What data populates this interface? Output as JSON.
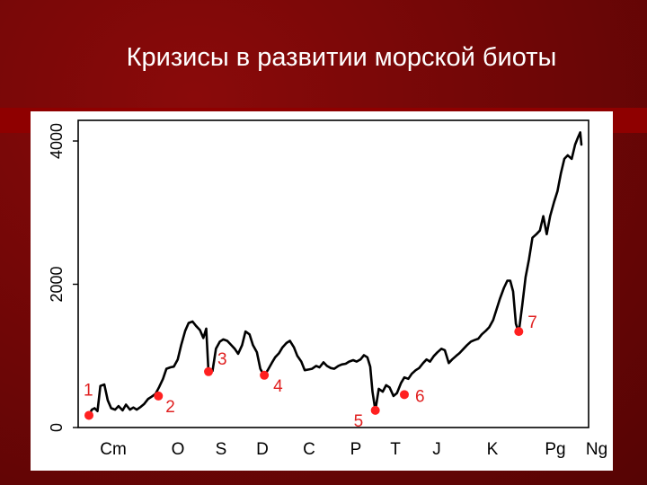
{
  "slide": {
    "title": "Кризисы в развитии морской биоты"
  },
  "chart_data": {
    "type": "line",
    "title": "Кризисы в развитии морской биоты",
    "xlabel": "",
    "ylabel": "",
    "ylim": [
      0,
      4000
    ],
    "y_ticks": [
      "0",
      "2000",
      "4000"
    ],
    "periods": [
      "Cm",
      "O",
      "S",
      "D",
      "C",
      "P",
      "T",
      "J",
      "K",
      "Pg",
      "Ng"
    ],
    "line_color": "#000000",
    "marker_color": "#ff2020",
    "label_color": "#e02020",
    "series": [
      {
        "values": [
          [
            0.0,
            170
          ],
          [
            0.5,
            250
          ],
          [
            1.0,
            270
          ],
          [
            1.5,
            230
          ],
          [
            2.0,
            580
          ],
          [
            2.7,
            600
          ],
          [
            3.3,
            380
          ],
          [
            3.9,
            270
          ],
          [
            4.6,
            250
          ],
          [
            5.2,
            300
          ],
          [
            5.9,
            240
          ],
          [
            6.5,
            320
          ],
          [
            7.2,
            250
          ],
          [
            7.8,
            280
          ],
          [
            8.4,
            250
          ],
          [
            9.1,
            290
          ],
          [
            9.7,
            330
          ],
          [
            10.4,
            400
          ],
          [
            11.0,
            430
          ],
          [
            11.7,
            470
          ],
          [
            12.3,
            560
          ],
          [
            13.0,
            680
          ],
          [
            13.6,
            820
          ],
          [
            14.3,
            840
          ],
          [
            14.9,
            850
          ],
          [
            15.6,
            950
          ],
          [
            16.2,
            1150
          ],
          [
            16.9,
            1350
          ],
          [
            17.5,
            1460
          ],
          [
            18.2,
            1480
          ],
          [
            18.8,
            1420
          ],
          [
            19.5,
            1360
          ],
          [
            20.1,
            1250
          ],
          [
            20.6,
            1380
          ],
          [
            21.0,
            780
          ],
          [
            21.7,
            790
          ],
          [
            22.3,
            1100
          ],
          [
            23.0,
            1200
          ],
          [
            23.6,
            1230
          ],
          [
            24.3,
            1210
          ],
          [
            24.9,
            1160
          ],
          [
            25.6,
            1100
          ],
          [
            26.2,
            1030
          ],
          [
            26.9,
            1150
          ],
          [
            27.5,
            1340
          ],
          [
            28.2,
            1300
          ],
          [
            28.8,
            1150
          ],
          [
            29.5,
            1050
          ],
          [
            30.1,
            820
          ],
          [
            30.8,
            720
          ],
          [
            31.4,
            800
          ],
          [
            32.1,
            900
          ],
          [
            32.7,
            980
          ],
          [
            33.4,
            1040
          ],
          [
            34.0,
            1120
          ],
          [
            34.7,
            1180
          ],
          [
            35.3,
            1210
          ],
          [
            36.0,
            1120
          ],
          [
            36.6,
            1000
          ],
          [
            37.3,
            920
          ],
          [
            37.9,
            800
          ],
          [
            38.6,
            810
          ],
          [
            39.2,
            820
          ],
          [
            39.9,
            860
          ],
          [
            40.5,
            840
          ],
          [
            41.2,
            910
          ],
          [
            41.8,
            860
          ],
          [
            42.5,
            830
          ],
          [
            43.1,
            820
          ],
          [
            43.8,
            860
          ],
          [
            44.4,
            880
          ],
          [
            45.1,
            890
          ],
          [
            45.7,
            920
          ],
          [
            46.4,
            940
          ],
          [
            47.0,
            920
          ],
          [
            47.7,
            950
          ],
          [
            48.3,
            1010
          ],
          [
            48.9,
            980
          ],
          [
            49.4,
            850
          ],
          [
            49.8,
            500
          ],
          [
            50.3,
            240
          ],
          [
            50.9,
            540
          ],
          [
            51.6,
            500
          ],
          [
            52.2,
            590
          ],
          [
            52.8,
            560
          ],
          [
            53.5,
            440
          ],
          [
            54.1,
            480
          ],
          [
            54.8,
            620
          ],
          [
            55.4,
            700
          ],
          [
            56.1,
            680
          ],
          [
            56.7,
            750
          ],
          [
            57.4,
            800
          ],
          [
            58.0,
            830
          ],
          [
            58.7,
            900
          ],
          [
            59.3,
            950
          ],
          [
            59.9,
            920
          ],
          [
            60.6,
            1000
          ],
          [
            61.2,
            1050
          ],
          [
            61.9,
            1100
          ],
          [
            62.5,
            1080
          ],
          [
            63.2,
            900
          ],
          [
            63.8,
            950
          ],
          [
            64.5,
            1000
          ],
          [
            65.1,
            1040
          ],
          [
            65.8,
            1100
          ],
          [
            66.4,
            1150
          ],
          [
            67.1,
            1200
          ],
          [
            67.7,
            1220
          ],
          [
            68.4,
            1240
          ],
          [
            69.0,
            1300
          ],
          [
            69.7,
            1350
          ],
          [
            70.3,
            1400
          ],
          [
            71.0,
            1500
          ],
          [
            71.6,
            1650
          ],
          [
            72.2,
            1800
          ],
          [
            72.9,
            1950
          ],
          [
            73.5,
            2050
          ],
          [
            74.0,
            2050
          ],
          [
            74.5,
            1900
          ],
          [
            75.0,
            1450
          ],
          [
            75.5,
            1330
          ],
          [
            76.1,
            1700
          ],
          [
            76.7,
            2100
          ],
          [
            77.3,
            2350
          ],
          [
            77.9,
            2650
          ],
          [
            78.6,
            2700
          ],
          [
            79.2,
            2750
          ],
          [
            79.8,
            2950
          ],
          [
            80.4,
            2700
          ],
          [
            81.0,
            2950
          ],
          [
            81.7,
            3150
          ],
          [
            82.3,
            3300
          ],
          [
            82.9,
            3550
          ],
          [
            83.5,
            3750
          ],
          [
            84.1,
            3800
          ],
          [
            84.8,
            3750
          ],
          [
            85.4,
            3950
          ],
          [
            85.9,
            4050
          ],
          [
            86.3,
            4120
          ],
          [
            86.5,
            3950
          ]
        ]
      }
    ],
    "crises": [
      {
        "label": "1",
        "x": 0.0,
        "y": 170
      },
      {
        "label": "2",
        "x": 12.2,
        "y": 440
      },
      {
        "label": "3",
        "x": 21.0,
        "y": 780
      },
      {
        "label": "4",
        "x": 30.8,
        "y": 730
      },
      {
        "label": "5",
        "x": 50.3,
        "y": 240
      },
      {
        "label": "6",
        "x": 55.4,
        "y": 460
      },
      {
        "label": "7",
        "x": 75.5,
        "y": 1340
      }
    ]
  }
}
